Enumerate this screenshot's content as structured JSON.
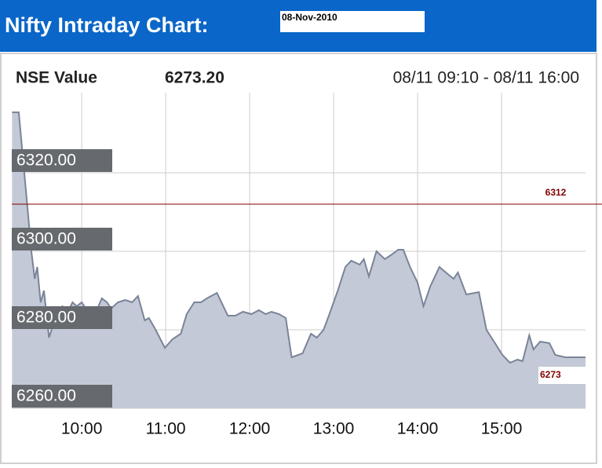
{
  "page_title": "Nifty Intraday Chart:",
  "date": "08-Nov-2010",
  "chart_data": {
    "type": "area",
    "series_name": "NSE Value",
    "current_value": "6273.20",
    "range": "08/11 09:10 - 08/11 16:00",
    "color": "#c3c9d6",
    "line_color": "#7a8498",
    "x": [
      9.17,
      9.25,
      9.29,
      9.35,
      9.4,
      9.44,
      9.47,
      9.51,
      9.55,
      9.61,
      9.64,
      9.7,
      9.77,
      9.83,
      9.89,
      9.94,
      10.0,
      10.06,
      10.13,
      10.19,
      10.24,
      10.3,
      10.35,
      10.43,
      10.52,
      10.6,
      10.67,
      10.75,
      10.8,
      10.88,
      10.99,
      11.08,
      11.18,
      11.25,
      11.34,
      11.42,
      11.49,
      11.61,
      11.74,
      11.83,
      11.92,
      12.02,
      12.11,
      12.19,
      12.26,
      12.35,
      12.43,
      12.5,
      12.63,
      12.73,
      12.8,
      12.88,
      12.95,
      13.05,
      13.14,
      13.21,
      13.31,
      13.36,
      13.42,
      13.51,
      13.61,
      13.68,
      13.77,
      13.83,
      13.91,
      14.0,
      14.07,
      14.15,
      14.26,
      14.37,
      14.43,
      14.48,
      14.58,
      14.73,
      14.82,
      14.91,
      15.01,
      15.1,
      15.19,
      15.25,
      15.33,
      15.38,
      15.46,
      15.57,
      15.64,
      15.76,
      16.0
    ],
    "values": [
      6335.4,
      6335.4,
      6326.0,
      6312.0,
      6300.0,
      6293.0,
      6296.0,
      6287.0,
      6290.0,
      6278.0,
      6280.0,
      6284.0,
      6286.0,
      6284.4,
      6287.0,
      6286.0,
      6287.0,
      6285.0,
      6285.0,
      6285.6,
      6288.0,
      6287.0,
      6285.4,
      6287.0,
      6287.6,
      6287.0,
      6288.6,
      6282.4,
      6283.0,
      6280.0,
      6275.4,
      6277.6,
      6279.0,
      6284.0,
      6287.0,
      6287.0,
      6288.0,
      6289.4,
      6283.6,
      6283.6,
      6284.6,
      6284.0,
      6285.0,
      6284.0,
      6284.6,
      6284.0,
      6283.0,
      6273.0,
      6274.0,
      6279.0,
      6278.0,
      6280.0,
      6284.0,
      6290.0,
      6296.0,
      6297.6,
      6296.6,
      6298.0,
      6293.6,
      6300.0,
      6298.0,
      6299.0,
      6300.4,
      6300.4,
      6296.0,
      6292.0,
      6286.0,
      6291.0,
      6296.0,
      6294.0,
      6293.0,
      6294.6,
      6289.0,
      6289.6,
      6280.0,
      6277.0,
      6273.6,
      6271.6,
      6272.4,
      6272.0,
      6278.6,
      6275.0,
      6277.0,
      6276.6,
      6273.6,
      6273.0,
      6273.0
    ],
    "xlim": [
      9.1667,
      16
    ],
    "xticks": [
      {
        "value": 10,
        "label": "10:00"
      },
      {
        "value": 11,
        "label": "11:00"
      },
      {
        "value": 12,
        "label": "12:00"
      },
      {
        "value": 13,
        "label": "13:00"
      },
      {
        "value": 14,
        "label": "14:00"
      },
      {
        "value": 15,
        "label": "15:00"
      }
    ],
    "ylim": [
      6260,
      6340
    ],
    "yticks": [
      {
        "value": 6260,
        "label": "6260.00"
      },
      {
        "value": 6280,
        "label": "6280.00"
      },
      {
        "value": 6300,
        "label": "6300.00"
      },
      {
        "value": 6320,
        "label": "6320.00"
      }
    ],
    "grid": true,
    "reference_line": {
      "value": 6312,
      "color": "#800000"
    },
    "end_value": 6273
  }
}
